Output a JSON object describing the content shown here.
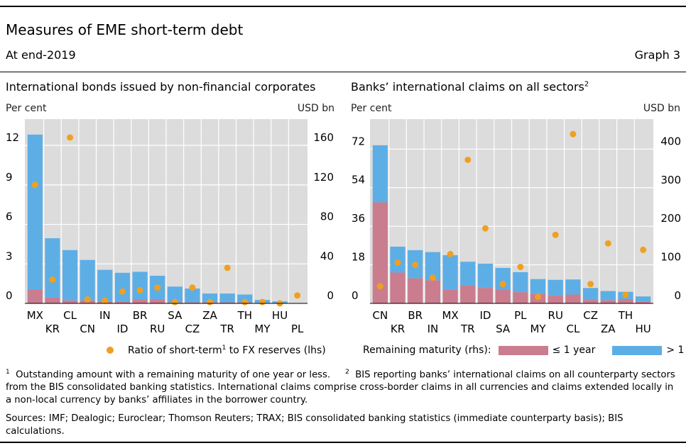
{
  "header": {
    "title": "Measures of EME short-term debt",
    "subtitle": "At end-2019",
    "graph_number": "Graph 3"
  },
  "left": {
    "title": "International bonds issued by non-financial corporates",
    "lhs_unit": "Per cent",
    "rhs_unit": "USD bn",
    "legend_dot_text_pre": "Ratio of short-term",
    "legend_dot_sup": "1",
    "legend_dot_text_post": " to FX reserves (lhs)"
  },
  "right": {
    "title": "Banks’ international claims on all sectors",
    "title_sup": "2",
    "lhs_unit": "Per cent",
    "rhs_unit": "USD bn",
    "legend_prefix": "Remaining maturity (rhs):",
    "legend_short": "≤ 1 year",
    "legend_long": "> 1 year"
  },
  "colors": {
    "panel_bg": "#dcdcdc",
    "bar_long": "#5eaee6",
    "bar_short": "#c97d8f",
    "dot": "#f0a020"
  },
  "footnotes": {
    "f1_mark": "1",
    "f1_text": "Outstanding amount with a remaining maturity of one year or less.",
    "f2_mark": "2",
    "f2_text": "BIS reporting banks’ international claims on all counterparty sectors",
    "cont": "from the BIS consolidated banking statistics. International claims comprise cross-border claims in all currencies and claims extended locally in a non-local currency by banks’ affiliates in the borrower country.",
    "sources": "Sources: IMF; Dealogic; Euroclear; Thomson Reuters; TRAX; BIS consolidated banking statistics (immediate counterparty basis); BIS calculations."
  },
  "chart_data": [
    {
      "type": "bar",
      "title": "International bonds issued by non-financial corporates",
      "categories": [
        "MX",
        "KR",
        "CL",
        "CN",
        "IN",
        "ID",
        "BR",
        "RU",
        "SA",
        "CZ",
        "ZA",
        "TR",
        "TH",
        "MY",
        "HU",
        "PL"
      ],
      "lhs_label": "Per cent",
      "rhs_label": "USD bn",
      "lhs_ticks": [
        0,
        3,
        6,
        9,
        12
      ],
      "rhs_ticks": [
        0,
        40,
        80,
        120,
        160
      ],
      "ylim_lhs": [
        0,
        14
      ],
      "ylim_rhs": [
        0,
        186.7
      ],
      "series": [
        {
          "name": "≤ 1 year",
          "axis": "rhs",
          "values": [
            14,
            6,
            3,
            3,
            2,
            2,
            4,
            4,
            1,
            1,
            1,
            1,
            1,
            0.5,
            0,
            0
          ]
        },
        {
          "name": "> 1 year",
          "axis": "rhs",
          "values": [
            157,
            60,
            51,
            41,
            32,
            29,
            28,
            24,
            16,
            14,
            9,
            9,
            8,
            3,
            2,
            0
          ]
        },
        {
          "name": "Ratio of short-term to FX reserves (lhs)",
          "axis": "lhs",
          "kind": "dot",
          "values": [
            9.0,
            1.8,
            12.6,
            0.3,
            0.2,
            0.9,
            1.0,
            1.2,
            0.1,
            1.2,
            0.1,
            2.7,
            0.1,
            0.1,
            0.0,
            0.6
          ]
        }
      ],
      "grid": true,
      "legend": "bottom"
    },
    {
      "type": "bar",
      "title": "Banks’ international claims on all sectors",
      "categories": [
        "CN",
        "KR",
        "BR",
        "IN",
        "MX",
        "TR",
        "ID",
        "SA",
        "PL",
        "MY",
        "RU",
        "CL",
        "CZ",
        "ZA",
        "TH",
        "HU"
      ],
      "lhs_label": "Per cent",
      "rhs_label": "USD bn",
      "lhs_ticks": [
        0,
        18,
        36,
        54,
        72
      ],
      "rhs_ticks": [
        0,
        100,
        200,
        300,
        400
      ],
      "ylim_lhs": [
        0,
        86
      ],
      "ylim_rhs": [
        0,
        477.8
      ],
      "series": [
        {
          "name": "≤ 1 year",
          "axis": "rhs",
          "values": [
            262,
            80,
            65,
            60,
            35,
            46,
            40,
            36,
            29,
            25,
            20,
            23,
            9,
            8,
            11,
            5
          ]
        },
        {
          "name": "> 1 year",
          "axis": "rhs",
          "values": [
            148,
            67,
            73,
            73,
            90,
            62,
            63,
            56,
            52,
            38,
            41,
            39,
            31,
            24,
            19,
            13
          ]
        },
        {
          "name": "Ratio of short-term to FX reserves (lhs)",
          "axis": "lhs",
          "kind": "dot",
          "values": [
            8,
            19,
            18,
            12,
            23,
            67,
            35,
            9,
            17,
            3,
            32,
            79,
            9,
            28,
            4,
            25
          ]
        }
      ],
      "grid": true,
      "legend": "bottom"
    }
  ]
}
